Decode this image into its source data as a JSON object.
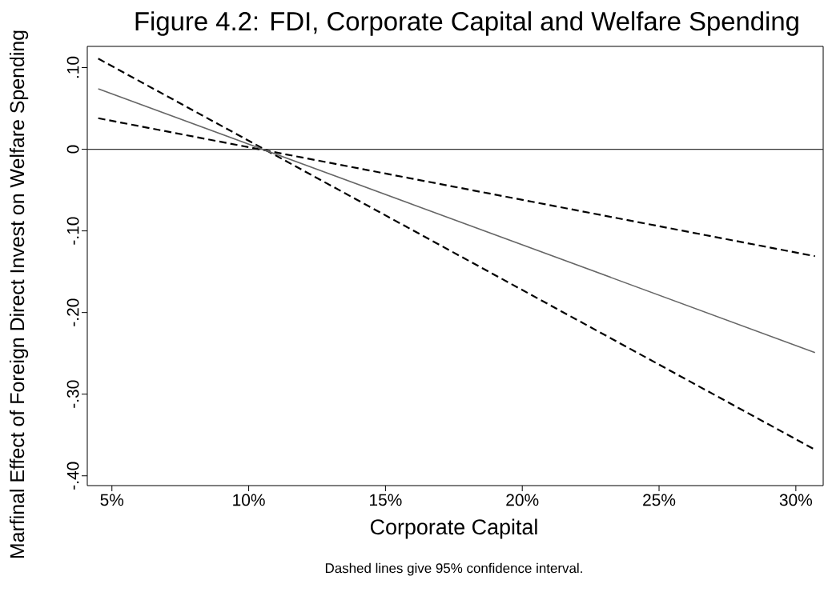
{
  "chart_data": {
    "type": "line",
    "title": "Figure 4.2: FDI, Corporate Capital and Welfare Spending",
    "xlabel": "Corporate Capital",
    "ylabel": "Marfinal Effect of Foreign Direct Invest on Welfare Spending",
    "annotations": [
      "Dashed lines give 95% confidence interval."
    ],
    "x": [
      4.5,
      30.7
    ],
    "series": [
      {
        "color": "#000000",
        "line_style": "dashed",
        "values": [
          0.111,
          -0.368
        ]
      },
      {
        "color": "#000000",
        "line_style": "dashed",
        "values": [
          0.038,
          -0.131
        ]
      },
      {
        "color": "#666666",
        "line_style": "solid",
        "values": [
          0.074,
          -0.249
        ]
      }
    ],
    "xlim": [
      4.1,
      31.0
    ],
    "ylim": [
      -0.412,
      0.126
    ],
    "xticks": [
      {
        "value": 5,
        "label": "5%"
      },
      {
        "value": 10,
        "label": "10%"
      },
      {
        "value": 15,
        "label": "15%"
      },
      {
        "value": 20,
        "label": "20%"
      },
      {
        "value": 25,
        "label": "25%"
      },
      {
        "value": 30,
        "label": "30%"
      }
    ],
    "yticks": [
      {
        "value": 0.1,
        "label": ".10"
      },
      {
        "value": 0,
        "label": "0"
      },
      {
        "value": -0.1,
        "label": "-.10"
      },
      {
        "value": -0.2,
        "label": "-.20"
      },
      {
        "value": -0.3,
        "label": "-.30"
      },
      {
        "value": -0.4,
        "label": "-.40"
      }
    ],
    "ref_lines": [
      {
        "axis": "y",
        "value": 0,
        "color": "#333333"
      }
    ],
    "grid": false
  }
}
